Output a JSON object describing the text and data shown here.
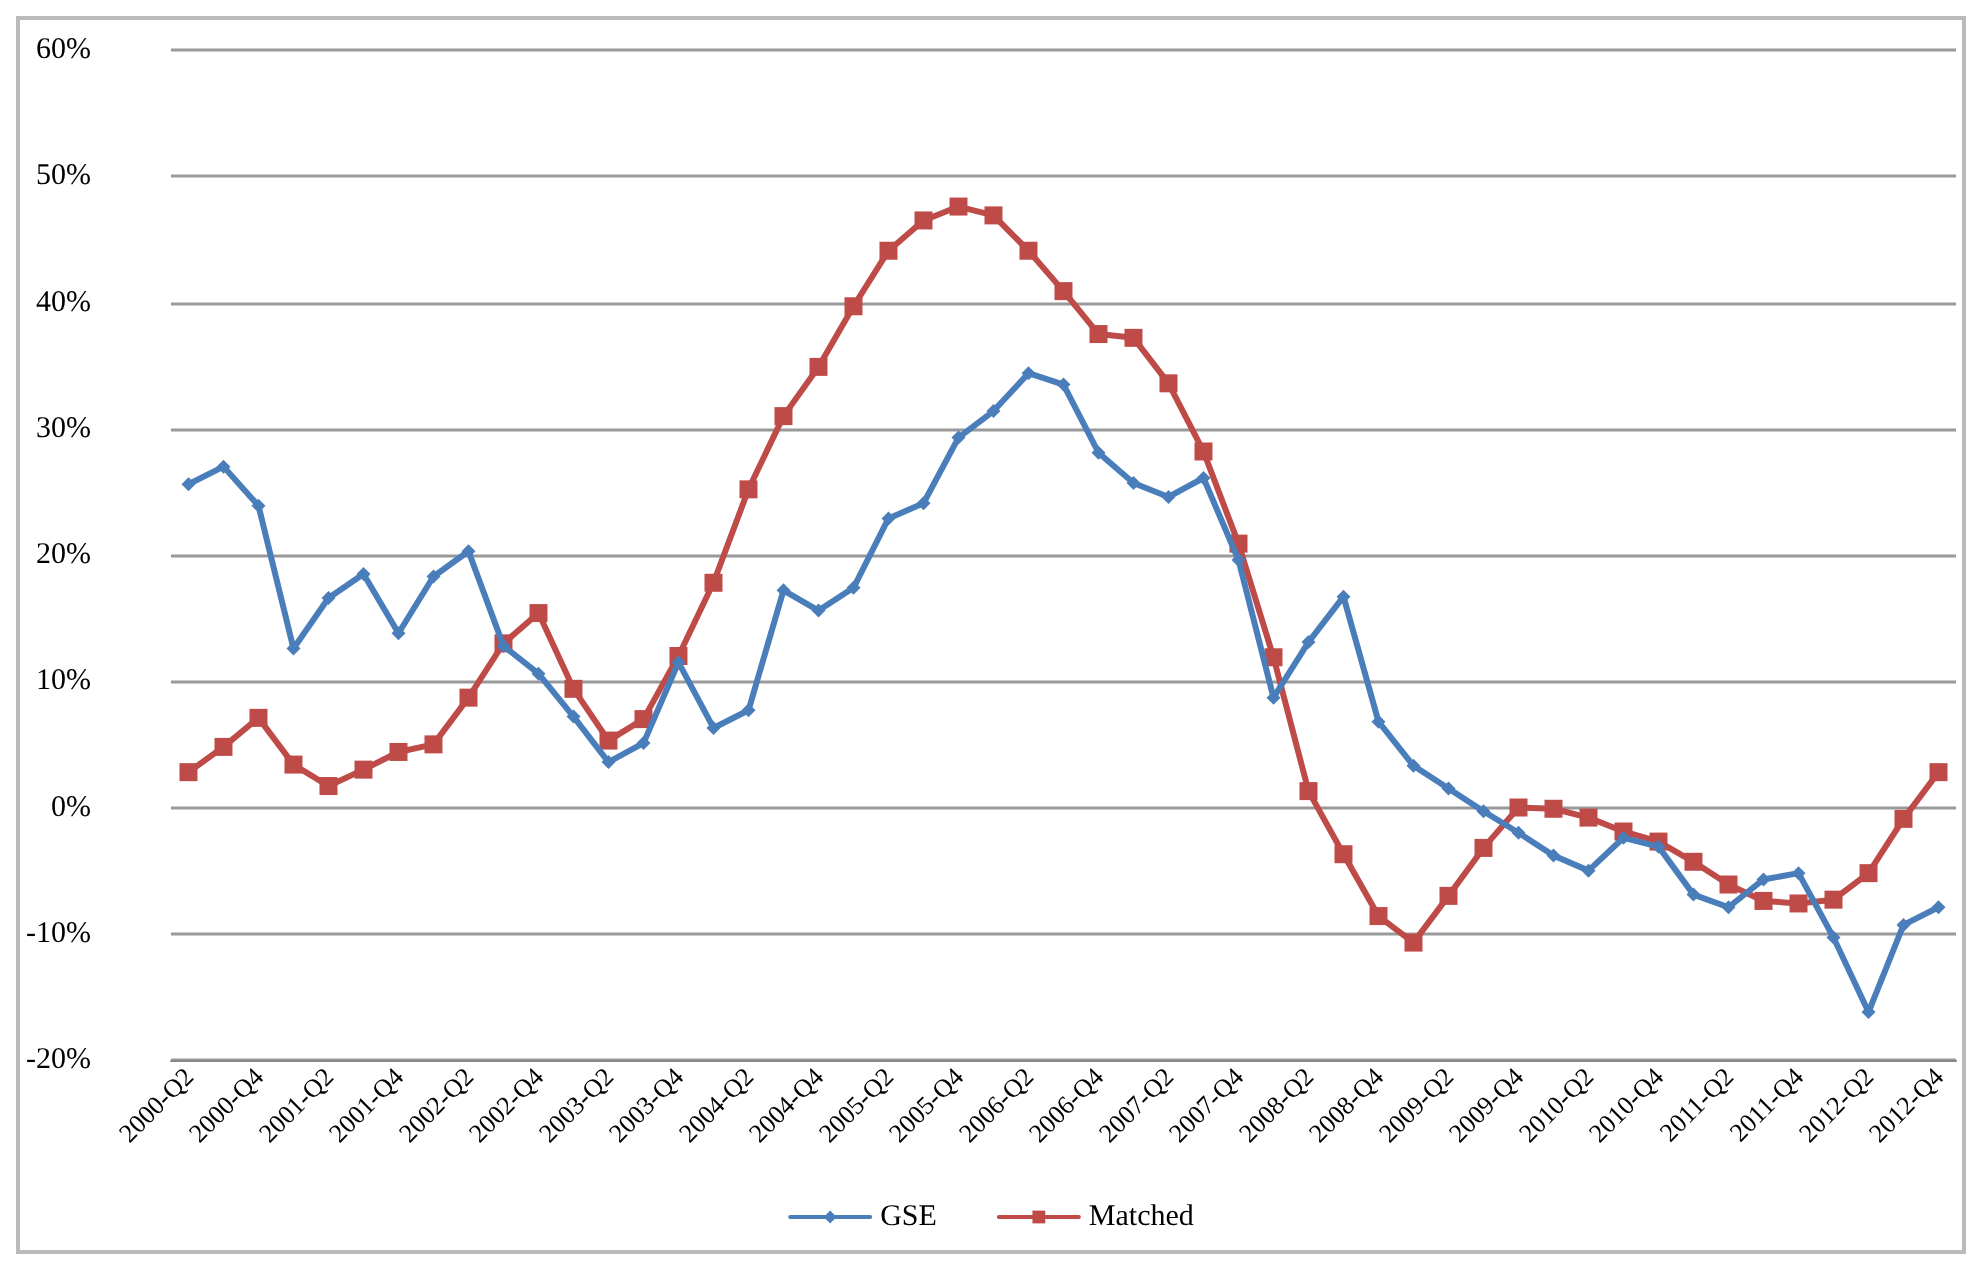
{
  "chart_data": {
    "type": "line",
    "categories": [
      "2000-Q2",
      null,
      "2000-Q4",
      null,
      "2001-Q2",
      null,
      "2001-Q4",
      null,
      "2002-Q2",
      null,
      "2002-Q4",
      null,
      "2003-Q2",
      null,
      "2003-Q4",
      null,
      "2004-Q2",
      null,
      "2004-Q4",
      null,
      "2005-Q2",
      null,
      "2005-Q4",
      null,
      "2006-Q2",
      null,
      "2006-Q4",
      null,
      "2007-Q2",
      null,
      "2007-Q4",
      null,
      "2008-Q2",
      null,
      "2008-Q4",
      null,
      "2009-Q2",
      null,
      "2009-Q4",
      null,
      "2010-Q2",
      null,
      "2010-Q4",
      null,
      "2011-Q2",
      null,
      "2011-Q4",
      null,
      "2012-Q2",
      null,
      "2012-Q4"
    ],
    "series": [
      {
        "name": "GSE",
        "color": "#4a7ebb",
        "marker": "diamond",
        "values": [
          25.6,
          27.0,
          23.9,
          12.6,
          16.6,
          18.5,
          13.8,
          18.3,
          20.3,
          12.8,
          10.6,
          7.2,
          3.6,
          5.1,
          11.5,
          6.3,
          7.7,
          17.2,
          15.6,
          17.4,
          22.9,
          24.1,
          29.3,
          31.4,
          34.4,
          33.5,
          28.1,
          25.7,
          24.6,
          26.1,
          19.6,
          8.7,
          13.1,
          16.7,
          6.8,
          3.3,
          1.5,
          -0.3,
          -2.0,
          -3.8,
          -5.0,
          -2.4,
          -3.1,
          -6.9,
          -7.9,
          -5.7,
          -5.2,
          -10.3,
          -16.2,
          -9.3,
          -7.9
        ]
      },
      {
        "name": "Matched",
        "color": "#be4b48",
        "marker": "square",
        "values": [
          2.8,
          4.8,
          7.1,
          3.4,
          1.7,
          3.0,
          4.4,
          5.0,
          8.7,
          13.0,
          15.4,
          9.4,
          5.3,
          7.0,
          12.0,
          17.8,
          25.2,
          31.0,
          34.9,
          39.7,
          44.1,
          46.5,
          47.6,
          46.9,
          44.1,
          40.9,
          37.5,
          37.2,
          33.6,
          28.2,
          20.9,
          11.9,
          1.3,
          -3.7,
          -8.6,
          -10.7,
          -7.0,
          -3.2,
          0.0,
          -0.1,
          -0.8,
          -1.9,
          -2.7,
          -4.3,
          -6.1,
          -7.4,
          -7.6,
          -7.3,
          -5.2,
          -0.9,
          2.8
        ]
      }
    ],
    "ylim": [
      -20,
      60
    ],
    "yticks": [
      {
        "value": -20,
        "label": "-20%"
      },
      {
        "value": -10,
        "label": "-10%"
      },
      {
        "value": 0,
        "label": "0%"
      },
      {
        "value": 10,
        "label": "10%"
      },
      {
        "value": 20,
        "label": "20%"
      },
      {
        "value": 30,
        "label": "30%"
      },
      {
        "value": 40,
        "label": "40%"
      },
      {
        "value": 50,
        "label": "50%"
      },
      {
        "value": 60,
        "label": "60%"
      }
    ],
    "grid": "y",
    "legend": "bottom",
    "line_style": "solid"
  }
}
